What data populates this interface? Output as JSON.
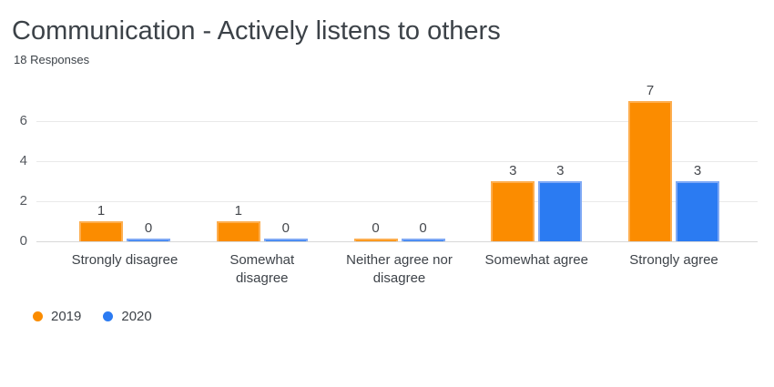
{
  "header": {
    "title": "Communication - Actively listens to others",
    "subtitle": "18 Responses"
  },
  "chart_data": {
    "type": "bar",
    "title": "Communication - Actively listens to others",
    "subtitle": "18 Responses",
    "categories": [
      "Strongly disagree",
      "Somewhat disagree",
      "Neither agree nor disagree",
      "Somewhat agree",
      "Strongly agree"
    ],
    "category_labels": [
      [
        "Strongly disagree"
      ],
      [
        "Somewhat",
        "disagree"
      ],
      [
        "Neither agree nor",
        "disagree"
      ],
      [
        "Somewhat agree"
      ],
      [
        "Strongly agree"
      ]
    ],
    "series": [
      {
        "name": "2019",
        "color": "#FB8C00",
        "edge_color": "#FDAE4F",
        "values": [
          1,
          1,
          0,
          3,
          7
        ]
      },
      {
        "name": "2020",
        "color": "#2B7BF2",
        "edge_color": "#7FA9F5",
        "values": [
          0,
          0,
          0,
          3,
          3
        ]
      }
    ],
    "yticks": [
      0,
      2,
      4,
      6
    ],
    "ylim": [
      0,
      7
    ],
    "grid": "horizontal",
    "legend_position": "bottom-left",
    "colors": {
      "grid_line": "#e9e9e9",
      "axis_line": "#d8d8d8",
      "tick_label": "#54585e",
      "value_label": "#45484d",
      "category_label": "#3e4349",
      "title": "#3c4248"
    }
  }
}
